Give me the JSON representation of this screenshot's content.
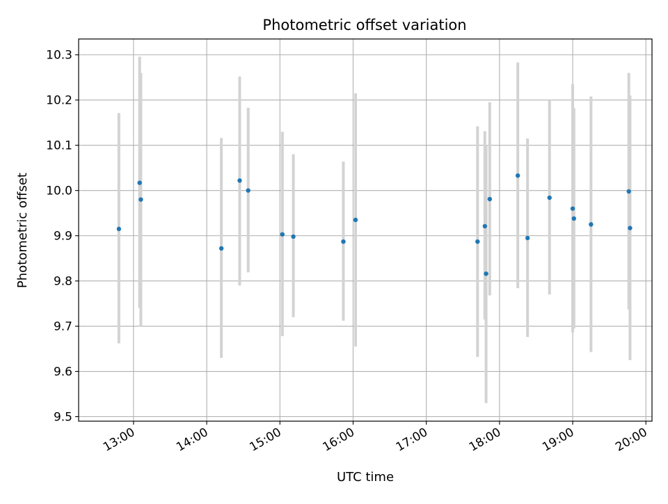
{
  "chart_data": {
    "type": "scatter",
    "title": "Photometric offset variation",
    "xlabel": "UTC time",
    "ylabel": "Photometric offset",
    "xlim": [
      "12:15",
      "20:05"
    ],
    "ylim": [
      9.49,
      10.335
    ],
    "x_ticks": [
      "13:00",
      "14:00",
      "15:00",
      "16:00",
      "17:00",
      "18:00",
      "19:00",
      "20:00"
    ],
    "y_ticks": [
      "9.5",
      "9.6",
      "9.7",
      "9.8",
      "9.9",
      "10.0",
      "10.1",
      "10.2",
      "10.3"
    ],
    "grid": true,
    "colors": {
      "marker": "#1f77b4",
      "errorbar": "#d3d3d3",
      "grid": "#b0b0b0"
    },
    "points": [
      {
        "x": "12:48",
        "y": 9.915,
        "low": 9.662,
        "high": 10.171
      },
      {
        "x": "13:05",
        "y": 10.017,
        "low": 9.74,
        "high": 10.296
      },
      {
        "x": "13:06",
        "y": 9.98,
        "low": 9.7,
        "high": 10.26
      },
      {
        "x": "14:12",
        "y": 9.872,
        "low": 9.63,
        "high": 10.116
      },
      {
        "x": "14:27",
        "y": 10.022,
        "low": 9.79,
        "high": 10.252
      },
      {
        "x": "14:34",
        "y": 10.0,
        "low": 9.819,
        "high": 10.183
      },
      {
        "x": "15:02",
        "y": 9.903,
        "low": 9.678,
        "high": 10.13
      },
      {
        "x": "15:11",
        "y": 9.898,
        "low": 9.72,
        "high": 10.08
      },
      {
        "x": "15:52",
        "y": 9.887,
        "low": 9.712,
        "high": 10.064
      },
      {
        "x": "16:02",
        "y": 9.935,
        "low": 9.655,
        "high": 10.215
      },
      {
        "x": "17:42",
        "y": 9.887,
        "low": 9.632,
        "high": 10.142
      },
      {
        "x": "17:48",
        "y": 9.921,
        "low": 9.715,
        "high": 10.131
      },
      {
        "x": "17:49",
        "y": 9.816,
        "low": 9.53,
        "high": 10.1
      },
      {
        "x": "17:52",
        "y": 9.981,
        "low": 9.768,
        "high": 10.195
      },
      {
        "x": "18:15",
        "y": 10.033,
        "low": 9.784,
        "high": 10.283
      },
      {
        "x": "18:23",
        "y": 9.895,
        "low": 9.676,
        "high": 10.115
      },
      {
        "x": "18:41",
        "y": 9.984,
        "low": 9.77,
        "high": 10.2
      },
      {
        "x": "19:00",
        "y": 9.96,
        "low": 9.686,
        "high": 10.235
      },
      {
        "x": "19:01",
        "y": 9.938,
        "low": 9.695,
        "high": 10.182
      },
      {
        "x": "19:15",
        "y": 9.925,
        "low": 9.643,
        "high": 10.208
      },
      {
        "x": "19:46",
        "y": 9.998,
        "low": 9.737,
        "high": 10.26
      },
      {
        "x": "19:47",
        "y": 9.917,
        "low": 9.625,
        "high": 10.21
      }
    ]
  }
}
